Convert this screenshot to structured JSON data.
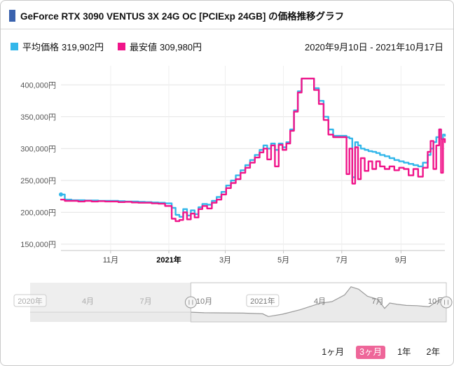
{
  "header": {
    "title": "GeForce RTX 3090 VENTUS 3X 24G OC [PCIExp 24GB] の価格推移グラフ"
  },
  "legend": {
    "average": {
      "label": "平均価格",
      "value": "319,902円",
      "color": "#33b7ea"
    },
    "lowest": {
      "label": "最安値",
      "value": "309,980円",
      "color": "#f0158a"
    },
    "date_range": "2020年9月10日 - 2021年10月17日"
  },
  "range_buttons": [
    {
      "id": "1m",
      "label": "1ヶ月",
      "selected": false
    },
    {
      "id": "3m",
      "label": "3ヶ月",
      "selected": true
    },
    {
      "id": "1y",
      "label": "1年",
      "selected": false
    },
    {
      "id": "2y",
      "label": "2年",
      "selected": false
    }
  ],
  "colors": {
    "average_line": "#33b7ea",
    "lowest_line": "#f0158a",
    "selected_button_bg": "#ee6699",
    "title_bullet": "#3a62ae"
  },
  "chart_data": {
    "type": "line",
    "title": "GeForce RTX 3090 VENTUS 3X 24G OC [PCIExp 24GB] の価格推移グラフ",
    "main": {
      "xrange": [
        "2020-09-10",
        "2021-10-17"
      ],
      "ylim": [
        140000,
        430000
      ],
      "y_ticks": [
        {
          "value": 150000,
          "label": "150,000円"
        },
        {
          "value": 200000,
          "label": "200,000円"
        },
        {
          "value": 250000,
          "label": "250,000円"
        },
        {
          "value": 300000,
          "label": "300,000円"
        },
        {
          "value": 350000,
          "label": "350,000円"
        },
        {
          "value": 400000,
          "label": "400,000円"
        }
      ],
      "x_ticks": [
        {
          "date": "2020-11-01",
          "label": "11月",
          "bold": false
        },
        {
          "date": "2021-01-01",
          "label": "2021年",
          "bold": true
        },
        {
          "date": "2021-03-01",
          "label": "3月",
          "bold": false
        },
        {
          "date": "2021-05-01",
          "label": "5月",
          "bold": false
        },
        {
          "date": "2021-07-01",
          "label": "7月",
          "bold": false
        },
        {
          "date": "2021-09-01",
          "label": "9月",
          "bold": false
        }
      ],
      "series": [
        {
          "id": "average-price-line",
          "name": "平均価格",
          "color": "#33b7ea",
          "current_value": 319902,
          "points": [
            [
              "2020-09-10",
              228000
            ],
            [
              "2020-09-14",
              220000
            ],
            [
              "2020-09-21",
              219000
            ],
            [
              "2020-09-28",
              219000
            ],
            [
              "2020-10-05",
              218500
            ],
            [
              "2020-10-12",
              218500
            ],
            [
              "2020-10-19",
              218000
            ],
            [
              "2020-10-26",
              218000
            ],
            [
              "2020-11-02",
              218000
            ],
            [
              "2020-11-09",
              217500
            ],
            [
              "2020-11-16",
              217000
            ],
            [
              "2020-11-23",
              217000
            ],
            [
              "2020-11-30",
              216500
            ],
            [
              "2020-12-07",
              216000
            ],
            [
              "2020-12-14",
              215500
            ],
            [
              "2020-12-21",
              215000
            ],
            [
              "2020-12-28",
              214000
            ],
            [
              "2021-01-04",
              207000
            ],
            [
              "2021-01-08",
              196000
            ],
            [
              "2021-01-12",
              193000
            ],
            [
              "2021-01-16",
              205000
            ],
            [
              "2021-01-20",
              195000
            ],
            [
              "2021-01-24",
              203000
            ],
            [
              "2021-01-28",
              197000
            ],
            [
              "2021-02-01",
              208000
            ],
            [
              "2021-02-05",
              213000
            ],
            [
              "2021-02-10",
              212000
            ],
            [
              "2021-02-15",
              218000
            ],
            [
              "2021-02-20",
              224000
            ],
            [
              "2021-02-25",
              232000
            ],
            [
              "2021-03-02",
              242000
            ],
            [
              "2021-03-07",
              250000
            ],
            [
              "2021-03-12",
              258000
            ],
            [
              "2021-03-17",
              266000
            ],
            [
              "2021-03-22",
              274000
            ],
            [
              "2021-03-27",
              282000
            ],
            [
              "2021-04-01",
              290000
            ],
            [
              "2021-04-06",
              298000
            ],
            [
              "2021-04-10",
              305000
            ],
            [
              "2021-04-14",
              300000
            ],
            [
              "2021-04-18",
              308000
            ],
            [
              "2021-04-22",
              298000
            ],
            [
              "2021-04-26",
              308000
            ],
            [
              "2021-04-30",
              302000
            ],
            [
              "2021-05-04",
              310000
            ],
            [
              "2021-05-08",
              330000
            ],
            [
              "2021-05-12",
              360000
            ],
            [
              "2021-05-16",
              390000
            ],
            [
              "2021-05-20",
              410000
            ],
            [
              "2021-05-28",
              410000
            ],
            [
              "2021-06-02",
              395000
            ],
            [
              "2021-06-07",
              375000
            ],
            [
              "2021-06-12",
              350000
            ],
            [
              "2021-06-17",
              330000
            ],
            [
              "2021-06-22",
              320000
            ],
            [
              "2021-06-27",
              320000
            ],
            [
              "2021-07-02",
              320000
            ],
            [
              "2021-07-06",
              318000
            ],
            [
              "2021-07-09",
              316000
            ],
            [
              "2021-07-12",
              255000
            ],
            [
              "2021-07-15",
              310000
            ],
            [
              "2021-07-18",
              305000
            ],
            [
              "2021-07-21",
              300000
            ],
            [
              "2021-07-25",
              298000
            ],
            [
              "2021-07-29",
              296000
            ],
            [
              "2021-08-02",
              295000
            ],
            [
              "2021-08-06",
              293000
            ],
            [
              "2021-08-10",
              290000
            ],
            [
              "2021-08-15",
              288000
            ],
            [
              "2021-08-20",
              285000
            ],
            [
              "2021-08-25",
              282000
            ],
            [
              "2021-08-30",
              280000
            ],
            [
              "2021-09-04",
              278000
            ],
            [
              "2021-09-09",
              276000
            ],
            [
              "2021-09-14",
              274000
            ],
            [
              "2021-09-19",
              272000
            ],
            [
              "2021-09-24",
              278000
            ],
            [
              "2021-09-29",
              290000
            ],
            [
              "2021-10-02",
              300000
            ],
            [
              "2021-10-05",
              310000
            ],
            [
              "2021-10-08",
              318000
            ],
            [
              "2021-10-11",
              330000
            ],
            [
              "2021-10-13",
              315000
            ],
            [
              "2021-10-15",
              322000
            ],
            [
              "2021-10-17",
              319902
            ]
          ]
        },
        {
          "id": "lowest-price-line",
          "name": "最安値",
          "color": "#f0158a",
          "current_value": 309980,
          "points": [
            [
              "2020-09-10",
              220000
            ],
            [
              "2020-09-14",
              218000
            ],
            [
              "2020-09-21",
              218000
            ],
            [
              "2020-09-28",
              217000
            ],
            [
              "2020-10-05",
              218000
            ],
            [
              "2020-10-12",
              217000
            ],
            [
              "2020-10-19",
              217500
            ],
            [
              "2020-10-26",
              217000
            ],
            [
              "2020-11-02",
              217000
            ],
            [
              "2020-11-09",
              216000
            ],
            [
              "2020-11-16",
              216500
            ],
            [
              "2020-11-23",
              215500
            ],
            [
              "2020-11-30",
              215000
            ],
            [
              "2020-12-07",
              215000
            ],
            [
              "2020-12-14",
              214000
            ],
            [
              "2020-12-21",
              213500
            ],
            [
              "2020-12-28",
              210000
            ],
            [
              "2021-01-04",
              190000
            ],
            [
              "2021-01-08",
              186000
            ],
            [
              "2021-01-12",
              188000
            ],
            [
              "2021-01-16",
              200000
            ],
            [
              "2021-01-20",
              189000
            ],
            [
              "2021-01-24",
              198000
            ],
            [
              "2021-01-28",
              192000
            ],
            [
              "2021-02-01",
              205000
            ],
            [
              "2021-02-05",
              210000
            ],
            [
              "2021-02-10",
              206000
            ],
            [
              "2021-02-15",
              215000
            ],
            [
              "2021-02-20",
              220000
            ],
            [
              "2021-02-25",
              228000
            ],
            [
              "2021-03-02",
              238000
            ],
            [
              "2021-03-07",
              246000
            ],
            [
              "2021-03-12",
              252000
            ],
            [
              "2021-03-17",
              262000
            ],
            [
              "2021-03-22",
              270000
            ],
            [
              "2021-03-27",
              278000
            ],
            [
              "2021-04-01",
              286000
            ],
            [
              "2021-04-06",
              294000
            ],
            [
              "2021-04-10",
              300000
            ],
            [
              "2021-04-14",
              283000
            ],
            [
              "2021-04-18",
              305000
            ],
            [
              "2021-04-22",
              272000
            ],
            [
              "2021-04-26",
              306000
            ],
            [
              "2021-04-30",
              298000
            ],
            [
              "2021-05-04",
              308000
            ],
            [
              "2021-05-08",
              328000
            ],
            [
              "2021-05-12",
              358000
            ],
            [
              "2021-05-16",
              388000
            ],
            [
              "2021-05-20",
              410000
            ],
            [
              "2021-05-28",
              410000
            ],
            [
              "2021-06-02",
              392000
            ],
            [
              "2021-06-07",
              370000
            ],
            [
              "2021-06-12",
              345000
            ],
            [
              "2021-06-17",
              322000
            ],
            [
              "2021-06-22",
              318000
            ],
            [
              "2021-06-27",
              318000
            ],
            [
              "2021-07-02",
              318000
            ],
            [
              "2021-07-06",
              260000
            ],
            [
              "2021-07-09",
              300000
            ],
            [
              "2021-07-12",
              245000
            ],
            [
              "2021-07-15",
              302000
            ],
            [
              "2021-07-18",
              252000
            ],
            [
              "2021-07-21",
              285000
            ],
            [
              "2021-07-25",
              265000
            ],
            [
              "2021-07-29",
              280000
            ],
            [
              "2021-08-02",
              268000
            ],
            [
              "2021-08-06",
              280000
            ],
            [
              "2021-08-10",
              272000
            ],
            [
              "2021-08-15",
              268000
            ],
            [
              "2021-08-20",
              272000
            ],
            [
              "2021-08-25",
              266000
            ],
            [
              "2021-08-30",
              270000
            ],
            [
              "2021-09-04",
              268000
            ],
            [
              "2021-09-09",
              258000
            ],
            [
              "2021-09-14",
              268000
            ],
            [
              "2021-09-19",
              256000
            ],
            [
              "2021-09-24",
              270000
            ],
            [
              "2021-09-29",
              295000
            ],
            [
              "2021-10-02",
              312000
            ],
            [
              "2021-10-05",
              268000
            ],
            [
              "2021-10-08",
              305000
            ],
            [
              "2021-10-11",
              330000
            ],
            [
              "2021-10-13",
              262000
            ],
            [
              "2021-10-15",
              315000
            ],
            [
              "2021-10-17",
              309980
            ]
          ]
        }
      ]
    },
    "navigator": {
      "xrange": [
        "2020-01-01",
        "2021-10-17"
      ],
      "selection": {
        "start": "2020-09-10",
        "end": "2021-10-17"
      },
      "x_ticks": [
        {
          "date": "2020-01-01",
          "label": "2020年",
          "box": true
        },
        {
          "date": "2020-04-01",
          "label": "4月"
        },
        {
          "date": "2020-07-01",
          "label": "7月"
        },
        {
          "date": "2020-10-01",
          "label": "10月"
        },
        {
          "date": "2021-01-01",
          "label": "2021年",
          "box": true
        },
        {
          "date": "2021-04-01",
          "label": "4月"
        },
        {
          "date": "2021-07-01",
          "label": "7月"
        },
        {
          "date": "2021-10-01",
          "label": "10月"
        }
      ],
      "points": [
        [
          "2020-01-01",
          222000
        ],
        [
          "2020-03-01",
          222000
        ],
        [
          "2020-05-01",
          222000
        ],
        [
          "2020-07-01",
          222000
        ],
        [
          "2020-09-01",
          222000
        ],
        [
          "2020-09-10",
          222000
        ],
        [
          "2020-10-01",
          218000
        ],
        [
          "2020-11-01",
          217000
        ],
        [
          "2020-12-01",
          215000
        ],
        [
          "2021-01-01",
          210000
        ],
        [
          "2021-01-10",
          190000
        ],
        [
          "2021-02-01",
          207000
        ],
        [
          "2021-03-01",
          240000
        ],
        [
          "2021-04-01",
          288000
        ],
        [
          "2021-04-20",
          300000
        ],
        [
          "2021-05-10",
          350000
        ],
        [
          "2021-05-20",
          410000
        ],
        [
          "2021-06-01",
          392000
        ],
        [
          "2021-06-15",
          340000
        ],
        [
          "2021-07-01",
          318000
        ],
        [
          "2021-07-12",
          250000
        ],
        [
          "2021-07-20",
          290000
        ],
        [
          "2021-08-01",
          280000
        ],
        [
          "2021-08-15",
          272000
        ],
        [
          "2021-09-01",
          270000
        ],
        [
          "2021-09-20",
          262000
        ],
        [
          "2021-10-01",
          300000
        ],
        [
          "2021-10-10",
          320000
        ],
        [
          "2021-10-17",
          312000
        ]
      ]
    }
  }
}
